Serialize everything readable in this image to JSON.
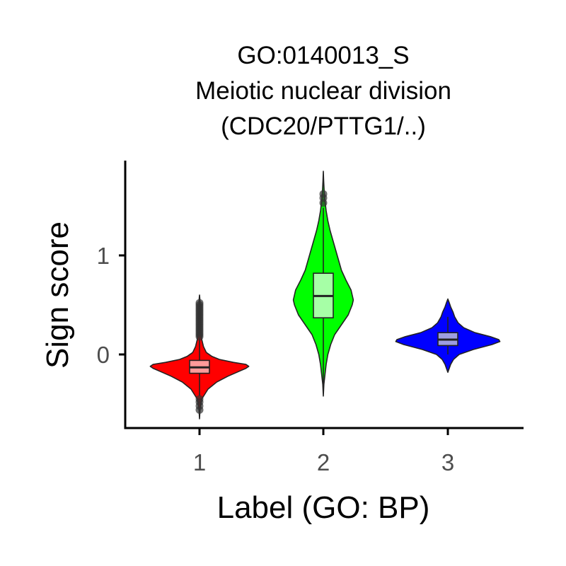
{
  "chart_data": {
    "type": "violin",
    "title_lines": [
      "GO:0140013_S",
      "Meiotic nuclear division",
      "(CDC20/PTTG1/..)"
    ],
    "xlabel": "Label (GO: BP)",
    "ylabel": "Sign score",
    "x_ticks": [
      "1",
      "2",
      "3"
    ],
    "y_ticks": [
      0,
      1
    ],
    "ylim": [
      -0.75,
      1.95
    ],
    "grid": false,
    "legend": "none",
    "groups": [
      {
        "category": "1",
        "color": "#ff0000",
        "box_color": "#ff9a9a",
        "density": [
          [
            -0.65,
            0.0
          ],
          [
            -0.55,
            0.01
          ],
          [
            -0.45,
            0.04
          ],
          [
            -0.35,
            0.15
          ],
          [
            -0.28,
            0.3
          ],
          [
            -0.22,
            0.5
          ],
          [
            -0.17,
            0.7
          ],
          [
            -0.14,
            0.82
          ],
          [
            -0.12,
            0.87
          ],
          [
            -0.1,
            0.82
          ],
          [
            -0.08,
            0.6
          ],
          [
            -0.05,
            0.35
          ],
          [
            -0.02,
            0.22
          ],
          [
            0.02,
            0.12
          ],
          [
            0.08,
            0.07
          ],
          [
            0.15,
            0.04
          ],
          [
            0.25,
            0.025
          ],
          [
            0.35,
            0.015
          ],
          [
            0.45,
            0.01
          ],
          [
            0.55,
            0.008
          ],
          [
            0.6,
            0.0
          ]
        ],
        "box": {
          "q1": -0.19,
          "median": -0.13,
          "q3": -0.06,
          "whisker_low": -0.42,
          "whisker_high": 0.16
        },
        "outliers": [
          0.18,
          0.2,
          0.22,
          0.24,
          0.26,
          0.28,
          0.3,
          0.32,
          0.34,
          0.36,
          0.38,
          0.4,
          0.42,
          0.44,
          0.46,
          0.48,
          0.5,
          0.52,
          -0.45,
          -0.48,
          -0.52,
          -0.56
        ]
      },
      {
        "category": "2",
        "color": "#00ff00",
        "box_color": "#a6ffa6",
        "density": [
          [
            -0.42,
            0.0
          ],
          [
            -0.3,
            0.01
          ],
          [
            -0.2,
            0.03
          ],
          [
            -0.1,
            0.05
          ],
          [
            0.0,
            0.08
          ],
          [
            0.1,
            0.13
          ],
          [
            0.2,
            0.2
          ],
          [
            0.3,
            0.32
          ],
          [
            0.4,
            0.44
          ],
          [
            0.5,
            0.51
          ],
          [
            0.55,
            0.53
          ],
          [
            0.65,
            0.49
          ],
          [
            0.75,
            0.4
          ],
          [
            0.85,
            0.32
          ],
          [
            0.95,
            0.27
          ],
          [
            1.05,
            0.22
          ],
          [
            1.15,
            0.17
          ],
          [
            1.25,
            0.12
          ],
          [
            1.35,
            0.08
          ],
          [
            1.45,
            0.05
          ],
          [
            1.55,
            0.03
          ],
          [
            1.65,
            0.015
          ],
          [
            1.75,
            0.006
          ],
          [
            1.85,
            0.0
          ]
        ],
        "box": {
          "q1": 0.37,
          "median": 0.59,
          "q3": 0.82,
          "whisker_low": -0.3,
          "whisker_high": 1.48
        },
        "outliers": [
          1.53,
          1.58,
          1.62
        ]
      },
      {
        "category": "3",
        "color": "#0000ff",
        "box_color": "#9d9de0",
        "density": [
          [
            -0.18,
            0.0
          ],
          [
            -0.1,
            0.05
          ],
          [
            -0.05,
            0.1
          ],
          [
            0.0,
            0.2
          ],
          [
            0.05,
            0.45
          ],
          [
            0.1,
            0.78
          ],
          [
            0.13,
            0.92
          ],
          [
            0.15,
            0.9
          ],
          [
            0.18,
            0.75
          ],
          [
            0.22,
            0.48
          ],
          [
            0.27,
            0.28
          ],
          [
            0.32,
            0.18
          ],
          [
            0.38,
            0.12
          ],
          [
            0.43,
            0.09
          ],
          [
            0.48,
            0.05
          ],
          [
            0.53,
            0.02
          ],
          [
            0.56,
            0.0
          ]
        ],
        "box": {
          "q1": 0.09,
          "median": 0.15,
          "q3": 0.22,
          "whisker_low": 0.0,
          "whisker_high": 0.38
        },
        "outliers": []
      }
    ]
  }
}
